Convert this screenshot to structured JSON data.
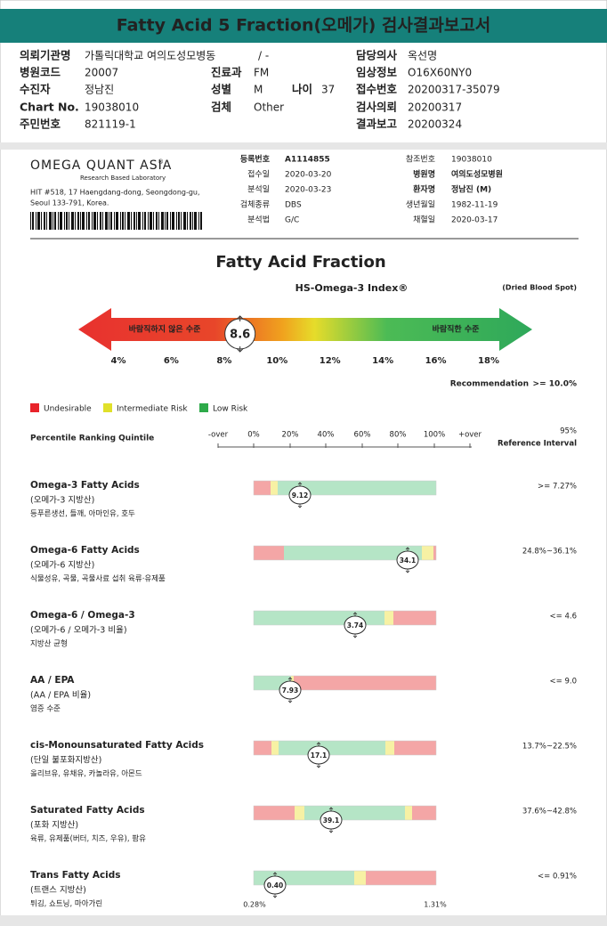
{
  "header": {
    "title": "Fatty Acid 5 Fraction(오메가) 검사결과보고서"
  },
  "patient_info": [
    {
      "label": "의뢰기관명",
      "value": "가톨릭대학교 여의도성모병동"
    },
    {
      "value": "/ -"
    },
    {
      "label": "담당의사",
      "value": "옥선명"
    },
    {
      "label": "병원코드",
      "value": "20007"
    },
    {
      "label": "진료과",
      "value": "FM"
    },
    {
      "label": "임상정보",
      "value": "O16X60NY0"
    },
    {
      "label": "수진자",
      "value": "정남진"
    },
    {
      "label": "성별",
      "value": "M"
    },
    {
      "label": "나이",
      "value": "37"
    },
    {
      "label": "접수번호",
      "value": "20200317-35079"
    },
    {
      "label": "Chart No.",
      "value": "19038010"
    },
    {
      "label": "검체",
      "value": "Other"
    },
    {
      "label": "검사의뢰",
      "value": "20200317"
    },
    {
      "label": "주민번호",
      "value": "821119-1"
    },
    {
      "label": "결과보고",
      "value": "20200324"
    }
  ],
  "lab": {
    "name": "OMEGA QUANT ASIA",
    "mark": "®",
    "tagline": "Research Based Laboratory",
    "address": [
      "HIT #518, 17 Haengdang-dong, Seongdong-gu,",
      "Seoul 133-791, Korea."
    ]
  },
  "sample": [
    {
      "label": "등록번호",
      "value": "A1114855"
    },
    {
      "label": "접수일",
      "value": "2020-03-20"
    },
    {
      "label": "분석일",
      "value": "2020-03-23"
    },
    {
      "label": "검체종류",
      "value": "DBS"
    },
    {
      "label": "분석법",
      "value": "G/C"
    },
    {
      "label": "참조번호",
      "value": "19038010"
    },
    {
      "label": "병원명",
      "value": "여의도성모병원"
    },
    {
      "label": "환자명",
      "value": "정남진 (M)"
    },
    {
      "label": "생년월일",
      "value": "1982-11-19"
    },
    {
      "label": "채혈일",
      "value": "2020-03-17"
    }
  ],
  "report": {
    "title": "Fatty Acid Fraction",
    "index_name": "HS-Omega-3 Index®",
    "sample_type": "(Dried Blood Spot)",
    "index": {
      "value": 8.6,
      "ticks": [
        {
          "value": 4,
          "label": "4%"
        },
        {
          "value": 6,
          "label": "6%"
        },
        {
          "value": 8,
          "label": "8%"
        },
        {
          "value": 10,
          "label": "10%"
        },
        {
          "value": 12,
          "label": "12%"
        },
        {
          "value": 14,
          "label": "14%"
        },
        {
          "value": 16,
          "label": "16%"
        },
        {
          "value": 18,
          "label": "18%"
        }
      ]
    },
    "zone_labels": [
      "바람직하지 않은 수준",
      "바람직한 수준"
    ],
    "recommendation": {
      "label": "Recommendation",
      "value": ">= 10.0%"
    },
    "legend": [
      "Undesirable",
      "Intermediate Risk",
      "Low Risk"
    ],
    "percentile": {
      "title": "Percentile Ranking Quintile",
      "ticks": [
        "-over",
        "0%",
        "20%",
        "40%",
        "60%",
        "80%",
        "100%",
        "+over"
      ],
      "reference_title": [
        "95%",
        "Reference Interval"
      ]
    },
    "rows": [
      {
        "name": "Omega-3 Fatty Acids",
        "korean": "(오메가-3 지방산)",
        "sources": "등푸른생선, 들깨, 아마인유, 호두",
        "value": "9.12",
        "reference": ">= 7.27%"
      },
      {
        "name": "Omega-6 Fatty Acids",
        "korean": "(오메가-6 지방산)",
        "sources": "식물성유, 곡물, 곡물사료 섭취 육류·유제품",
        "value": "34.1",
        "reference": "24.8%~36.1%"
      },
      {
        "name": "Omega-6 / Omega-3",
        "korean": "(오메가-6 / 오메가-3 비율)",
        "sources": "지방산 균형",
        "value": "3.74",
        "reference": "<= 4.6"
      },
      {
        "name": "AA / EPA",
        "korean": "(AA / EPA 비율)",
        "sources": "염증 수준",
        "value": "7.93",
        "reference": "<= 9.0"
      },
      {
        "name": "cis-Monounsaturated Fatty Acids",
        "korean": "(단일 불포화지방산)",
        "sources": "올리브유, 유채유, 카놀라유, 아몬드",
        "value": "17.1",
        "reference": "13.7%~22.5%"
      },
      {
        "name": "Saturated Fatty Acids",
        "korean": "(포화 지방산)",
        "sources": "육류, 유제품(버터, 치즈, 우유), 팜유",
        "value": "39.1",
        "reference": "37.6%~42.8%"
      },
      {
        "name": "Trans Fatty Acids",
        "korean": "(트랜스 지방산)",
        "sources": "튀김, 쇼트닝, 마아가린",
        "value": "0.40",
        "reference": "<= 0.91%"
      }
    ],
    "trans_range": [
      "0.28%",
      "1.31%"
    ]
  }
}
